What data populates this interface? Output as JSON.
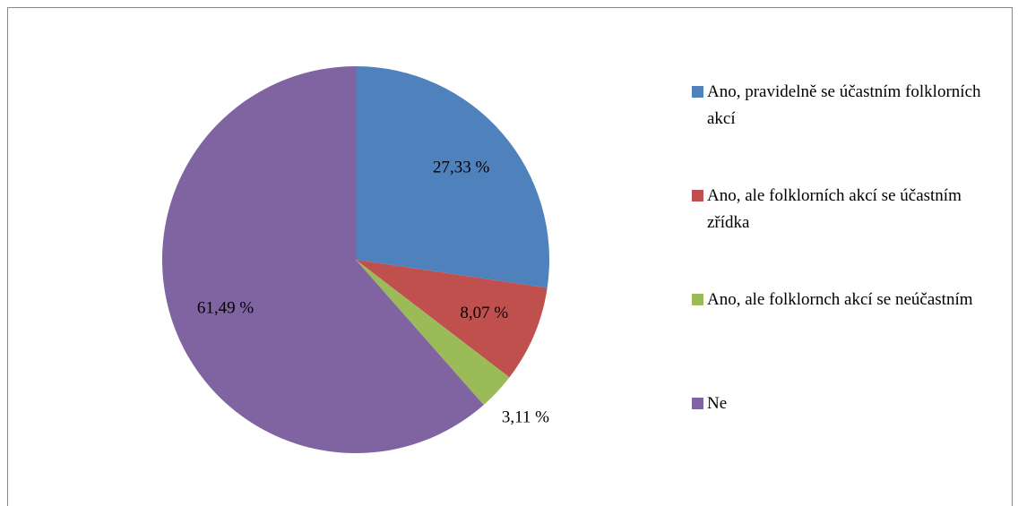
{
  "chart_data": {
    "type": "pie",
    "categories": [
      "Ano, pravidelně se účastním folklorních akcí",
      "Ano, ale folklorních akcí se účastním zřídka",
      "Ano, ale folklornch akcí se neúčastním",
      "Ne"
    ],
    "values": [
      27.33,
      8.07,
      3.11,
      61.49
    ],
    "value_labels": [
      "27,33 %",
      "8,07 %",
      "3,11 %",
      "61,49 %"
    ],
    "colors": [
      "#4f81bd",
      "#c0504d",
      "#9bbb59",
      "#8064a2"
    ],
    "legend": "right"
  }
}
